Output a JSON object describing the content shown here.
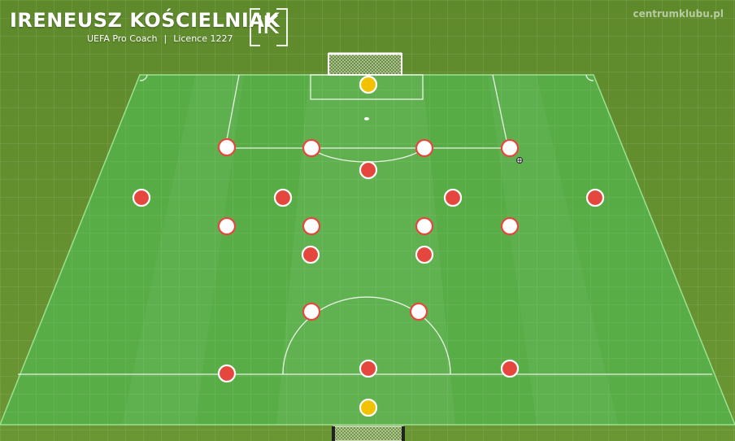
{
  "header": {
    "coach_name": "IRENEUSZ KOŚCIELNIAK",
    "coach_title": "UEFA Pro Coach",
    "separator": "|",
    "licence": "Licence 1227",
    "logo_text": "IK"
  },
  "watermark": {
    "site": "centrumklubu.pl"
  },
  "colors": {
    "grass": "#5e8a2f",
    "pitch": "#58b84c",
    "lines": "#ffffff",
    "red_player": "#e5473f",
    "white_player": "#ffffff",
    "keeper": "#f2c200"
  },
  "players": [
    {
      "id": "gk-top",
      "kind": "keeper"
    },
    {
      "id": "top-outer-left",
      "kind": "white"
    },
    {
      "id": "top-inner-left",
      "kind": "white"
    },
    {
      "id": "top-inner-right",
      "kind": "white"
    },
    {
      "id": "top-outer-right",
      "kind": "white"
    },
    {
      "id": "top-center",
      "kind": "red"
    },
    {
      "id": "mid-wide-left",
      "kind": "red"
    },
    {
      "id": "mid-left",
      "kind": "red"
    },
    {
      "id": "mid-right",
      "kind": "red"
    },
    {
      "id": "mid-wide-right",
      "kind": "red"
    },
    {
      "id": "lower-outer-left",
      "kind": "white"
    },
    {
      "id": "lower-inner-left",
      "kind": "white"
    },
    {
      "id": "lower-inner-right",
      "kind": "white"
    },
    {
      "id": "lower-outer-right",
      "kind": "white"
    },
    {
      "id": "pivot-left",
      "kind": "red"
    },
    {
      "id": "pivot-right",
      "kind": "red"
    },
    {
      "id": "arc-left",
      "kind": "white"
    },
    {
      "id": "arc-right",
      "kind": "white"
    },
    {
      "id": "back-left",
      "kind": "red"
    },
    {
      "id": "back-center",
      "kind": "red"
    },
    {
      "id": "back-right",
      "kind": "red"
    },
    {
      "id": "gk-bottom",
      "kind": "keeper"
    }
  ]
}
